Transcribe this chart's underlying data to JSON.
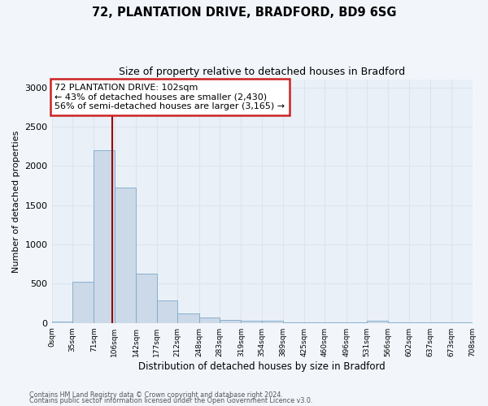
{
  "title1": "72, PLANTATION DRIVE, BRADFORD, BD9 6SG",
  "title2": "Size of property relative to detached houses in Bradford",
  "xlabel": "Distribution of detached houses by size in Bradford",
  "ylabel": "Number of detached properties",
  "bar_color": "#ccd9e8",
  "bar_edge_color": "#7aaac8",
  "bins": [
    0,
    35,
    71,
    106,
    142,
    177,
    212,
    248,
    283,
    319,
    354,
    389,
    425,
    460,
    496,
    531,
    566,
    602,
    637,
    673,
    708
  ],
  "bin_labels": [
    "0sqm",
    "35sqm",
    "71sqm",
    "106sqm",
    "142sqm",
    "177sqm",
    "212sqm",
    "248sqm",
    "283sqm",
    "319sqm",
    "354sqm",
    "389sqm",
    "425sqm",
    "460sqm",
    "496sqm",
    "531sqm",
    "566sqm",
    "602sqm",
    "637sqm",
    "673sqm",
    "708sqm"
  ],
  "values": [
    15,
    520,
    2200,
    1720,
    630,
    290,
    120,
    65,
    40,
    28,
    30,
    5,
    5,
    5,
    5,
    28,
    5,
    5,
    5,
    5
  ],
  "property_sqm": 102,
  "vline_color": "#990000",
  "annotation_line1": "72 PLANTATION DRIVE: 102sqm",
  "annotation_line2": "← 43% of detached houses are smaller (2,430)",
  "annotation_line3": "56% of semi-detached houses are larger (3,165) →",
  "annotation_box_facecolor": "#ffffff",
  "annotation_box_edgecolor": "#cc2222",
  "ylim": [
    0,
    3100
  ],
  "yticks": [
    0,
    500,
    1000,
    1500,
    2000,
    2500,
    3000
  ],
  "grid_color": "#dce4ee",
  "plot_bg_color": "#eaf0f8",
  "fig_bg_color": "#f2f6fb",
  "footnote1": "Contains HM Land Registry data © Crown copyright and database right 2024.",
  "footnote2": "Contains public sector information licensed under the Open Government Licence v3.0."
}
